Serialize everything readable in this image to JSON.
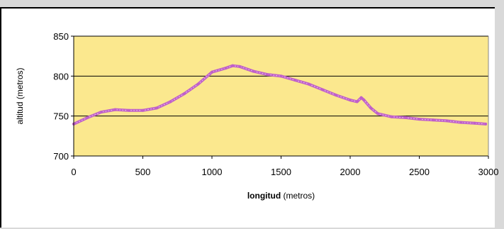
{
  "chart_data": {
    "type": "line",
    "title": "",
    "xlabel_bold": "longitud",
    "xlabel_rest": " (metros)",
    "ylabel": "altitud (metros)",
    "xlim": [
      0,
      3000
    ],
    "ylim": [
      700,
      850
    ],
    "x_ticks": [
      "0",
      "500",
      "1000",
      "1500",
      "2000",
      "2500",
      "3000"
    ],
    "y_ticks": [
      "700",
      "750",
      "800",
      "850"
    ],
    "grid": "horizontal",
    "plot_background": "#fbe88e",
    "line_color": "#c060c8",
    "series": [
      {
        "x": [
          0,
          100,
          200,
          300,
          400,
          500,
          600,
          700,
          800,
          900,
          1000,
          1100,
          1150,
          1200,
          1300,
          1400,
          1500,
          1600,
          1700,
          1800,
          1900,
          2000,
          2050,
          2080,
          2100,
          2150,
          2200,
          2300,
          2400,
          2500,
          2600,
          2700,
          2800,
          2900,
          2980
        ],
        "y": [
          740,
          748,
          755,
          758,
          757,
          757,
          760,
          768,
          778,
          790,
          805,
          810,
          813,
          812,
          806,
          802,
          800,
          795,
          790,
          783,
          776,
          770,
          768,
          773,
          770,
          760,
          753,
          749,
          748,
          746,
          745,
          744,
          742,
          741,
          740
        ]
      }
    ]
  }
}
